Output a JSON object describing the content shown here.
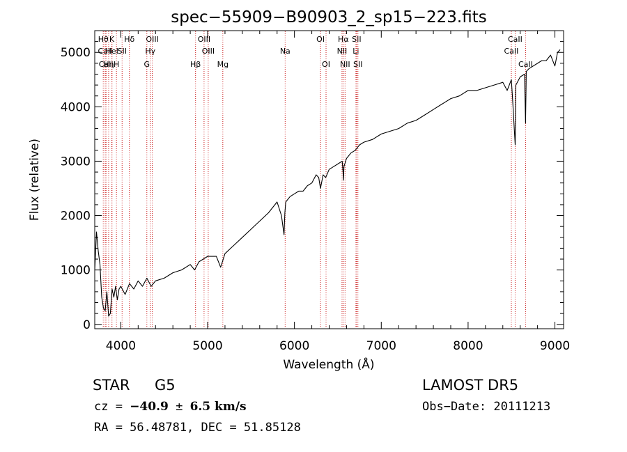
{
  "chart_data": {
    "type": "line",
    "title": "spec−55909−B90903_2_sp15−223.fits",
    "xlabel": "Wavelength (Å)",
    "ylabel": "Flux (relative)",
    "xlim": [
      3700,
      9100
    ],
    "ylim": [
      -80,
      5400
    ],
    "x_ticks": [
      4000,
      5000,
      6000,
      7000,
      8000,
      9000
    ],
    "y_ticks": [
      0,
      1000,
      2000,
      3000,
      4000,
      5000
    ],
    "grid": false,
    "line_color": "#000000",
    "marker_color": "#cc2020",
    "series": [
      {
        "x": [
          3700,
          3720,
          3740,
          3760,
          3780,
          3800,
          3820,
          3840,
          3860,
          3880,
          3900,
          3920,
          3940,
          3960,
          3980,
          4000,
          4050,
          4100,
          4150,
          4200,
          4250,
          4300,
          4350,
          4400,
          4500,
          4600,
          4700,
          4800,
          4850,
          4900,
          5000,
          5100,
          5150,
          5180,
          5200,
          5300,
          5400,
          5500,
          5600,
          5700,
          5800,
          5850,
          5880,
          5890,
          5900,
          5950,
          6000,
          6050,
          6100,
          6150,
          6200,
          6250,
          6280,
          6300,
          6330,
          6360,
          6400,
          6450,
          6500,
          6550,
          6560,
          6565,
          6570,
          6600,
          6650,
          6700,
          6750,
          6800,
          6900,
          7000,
          7100,
          7200,
          7300,
          7400,
          7500,
          7600,
          7700,
          7800,
          7900,
          8000,
          8100,
          8200,
          8300,
          8400,
          8450,
          8498,
          8510,
          8542,
          8550,
          8600,
          8650,
          8662,
          8670,
          8700,
          8800,
          8850,
          8900,
          8950,
          9000,
          9030,
          9060
        ],
        "y": [
          1000,
          1700,
          1350,
          1100,
          500,
          300,
          250,
          600,
          150,
          200,
          650,
          500,
          700,
          450,
          650,
          700,
          550,
          750,
          650,
          800,
          700,
          850,
          700,
          800,
          850,
          950,
          1000,
          1100,
          1000,
          1150,
          1250,
          1250,
          1050,
          1200,
          1300,
          1450,
          1600,
          1750,
          1900,
          2050,
          2250,
          2000,
          1650,
          2050,
          2250,
          2350,
          2400,
          2450,
          2450,
          2550,
          2600,
          2750,
          2700,
          2500,
          2750,
          2700,
          2850,
          2900,
          2950,
          3000,
          2800,
          2650,
          2900,
          3050,
          3150,
          3200,
          3300,
          3350,
          3400,
          3500,
          3550,
          3600,
          3700,
          3750,
          3850,
          3950,
          4050,
          4150,
          4200,
          4300,
          4300,
          4350,
          4400,
          4450,
          4300,
          4500,
          4200,
          3300,
          4400,
          4550,
          4600,
          3700,
          4650,
          4700,
          4800,
          4850,
          4850,
          4950,
          4750,
          5000,
          5050
        ]
      }
    ],
    "lines": [
      {
        "label": "Hθ",
        "wavelength": 3798,
        "row": 0
      },
      {
        "label": "CaII",
        "wavelength": 3820,
        "row": 1
      },
      {
        "label": "CaII",
        "wavelength": 3830,
        "row": 2
      },
      {
        "label": "Hη",
        "wavelength": 3860,
        "row": 2
      },
      {
        "label": "K",
        "wavelength": 3896,
        "row": 0
      },
      {
        "label": "HeI",
        "wavelength": 3899,
        "row": 1
      },
      {
        "label": "H",
        "wavelength": 3950,
        "row": 2
      },
      {
        "label": "SII",
        "wavelength": 4015,
        "row": 1
      },
      {
        "label": "Hδ",
        "wavelength": 4099,
        "row": 0
      },
      {
        "label": "OIII",
        "wavelength": 4363,
        "row": 0
      },
      {
        "label": "Hγ",
        "wavelength": 4340,
        "row": 1
      },
      {
        "label": "G",
        "wavelength": 4300,
        "row": 2
      },
      {
        "label": "Hβ",
        "wavelength": 4861,
        "row": 2
      },
      {
        "label": "OIII",
        "wavelength": 4959,
        "row": 0
      },
      {
        "label": "OIII",
        "wavelength": 5007,
        "row": 1
      },
      {
        "label": "Mg",
        "wavelength": 5175,
        "row": 2
      },
      {
        "label": "Na",
        "wavelength": 5893,
        "row": 1
      },
      {
        "label": "OI",
        "wavelength": 6300,
        "row": 0
      },
      {
        "label": "OI",
        "wavelength": 6364,
        "row": 2
      },
      {
        "label": "Hα",
        "wavelength": 6563,
        "row": 0
      },
      {
        "label": "NII",
        "wavelength": 6548,
        "row": 1
      },
      {
        "label": "NII",
        "wavelength": 6583,
        "row": 2
      },
      {
        "label": "SII",
        "wavelength": 6716,
        "row": 0
      },
      {
        "label": "Li",
        "wavelength": 6708,
        "row": 1
      },
      {
        "label": "SII",
        "wavelength": 6731,
        "row": 2
      },
      {
        "label": "CaII",
        "wavelength": 8542,
        "row": 0
      },
      {
        "label": "CaII",
        "wavelength": 8498,
        "row": 1
      },
      {
        "label": "CaII",
        "wavelength": 8662,
        "row": 2
      }
    ]
  },
  "info": {
    "class": "STAR",
    "subclass": "G5",
    "cz_label": "cz = ",
    "cz_value": "−40.9",
    "cz_pm": " ± ",
    "cz_err": "6.5",
    "cz_units": " km/s",
    "radec": "RA =  56.48781, DEC =  51.85128",
    "survey": "LAMOST DR5",
    "obs_date": "Obs−Date: 20111213"
  }
}
